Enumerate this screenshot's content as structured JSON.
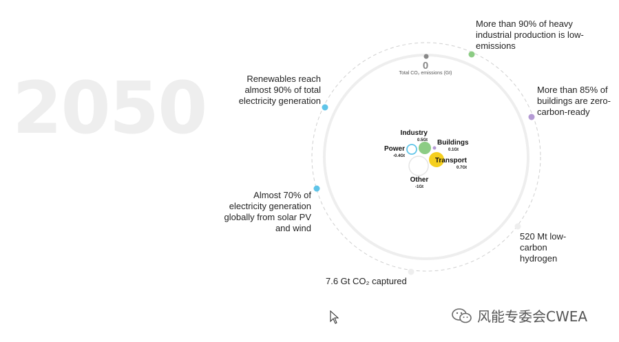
{
  "year": "2050",
  "total": {
    "value": "0",
    "label": "Total CO₂ emissions (Gt)"
  },
  "sectors": [
    {
      "name": "Industry",
      "value": "0.5Gt",
      "color": "#8ccc84"
    },
    {
      "name": "Buildings",
      "value": "0.1Gt",
      "color": "#b49ad4"
    },
    {
      "name": "Power",
      "value": "-0.4Gt",
      "color": "#5fc4e8"
    },
    {
      "name": "Transport",
      "value": "0.7Gt",
      "color": "#f5cf1e"
    },
    {
      "name": "Other",
      "value": "-1Gt",
      "color": "#e8e8e8"
    }
  ],
  "milestones": {
    "heavy_industry": "More than 90% of heavy industrial production is low-emissions",
    "buildings": "More than 85% of buildings are zero-carbon-ready",
    "renewables": "Renewables reach almost 90% of total electricity generation",
    "solar_wind": "Almost 70% of electricity generation globally from solar PV and wind",
    "hydrogen": "520 Mt low-carbon hydrogen",
    "co2_captured": "7.6 Gt CO₂ captured"
  },
  "colors": {
    "industry": "#8ccc84",
    "buildings": "#b49ad4",
    "power": "#5fc4e8",
    "transport": "#f5cf1e",
    "neutral": "#e0e0e0"
  },
  "watermark": {
    "text": "风能专委会CWEA",
    "icon": "wechat-icon"
  }
}
